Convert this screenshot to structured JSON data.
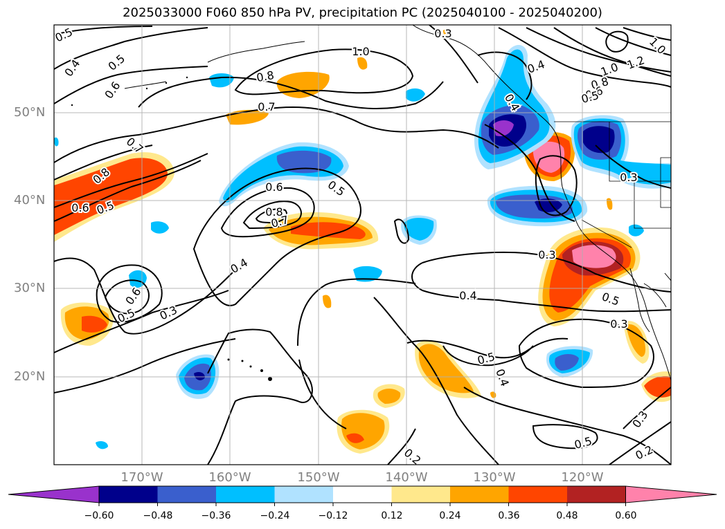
{
  "title": "2025033000 F060 850 hPa PV, precipitation PC (2025040100 - 2025040200)",
  "lat_labels": [
    "50°N",
    "40°N",
    "30°N",
    "20°N"
  ],
  "lon_labels": [
    "170°W",
    "160°W",
    "150°W",
    "140°W",
    "130°W",
    "120°W"
  ],
  "colorbar": {
    "tick_labels": [
      "−0.60",
      "−0.48",
      "−0.36",
      "−0.24",
      "−0.12",
      "0.12",
      "0.24",
      "0.36",
      "0.48",
      "0.60"
    ],
    "colors": [
      "#9932cc",
      "#00008b",
      "#3a5fcd",
      "#00bfff",
      "#b0e2ff",
      "#ffffff",
      "#ffe88c",
      "#ffa500",
      "#ff4500",
      "#b22222",
      "#ff82ab"
    ]
  },
  "contour_labels": [
    "0.5",
    "0.4",
    "0.5",
    "0.6",
    "0.8",
    "1.0",
    "0.7",
    "0.7",
    "0.8",
    "0.6",
    "0.5",
    "0.6",
    "0.5",
    "0.8",
    "0.7",
    "0.4",
    "0.6",
    "0.5",
    "0.3",
    "0.3",
    "0.4",
    "0.5",
    "0.4",
    "0.2",
    "0.5",
    "0.3",
    "0.5",
    "0.3",
    "0.3",
    "0.2",
    "0.3",
    "0.4",
    "1.0",
    "0.8",
    "0.6",
    "0.5",
    "1.2",
    "1.0",
    "0.4"
  ]
}
